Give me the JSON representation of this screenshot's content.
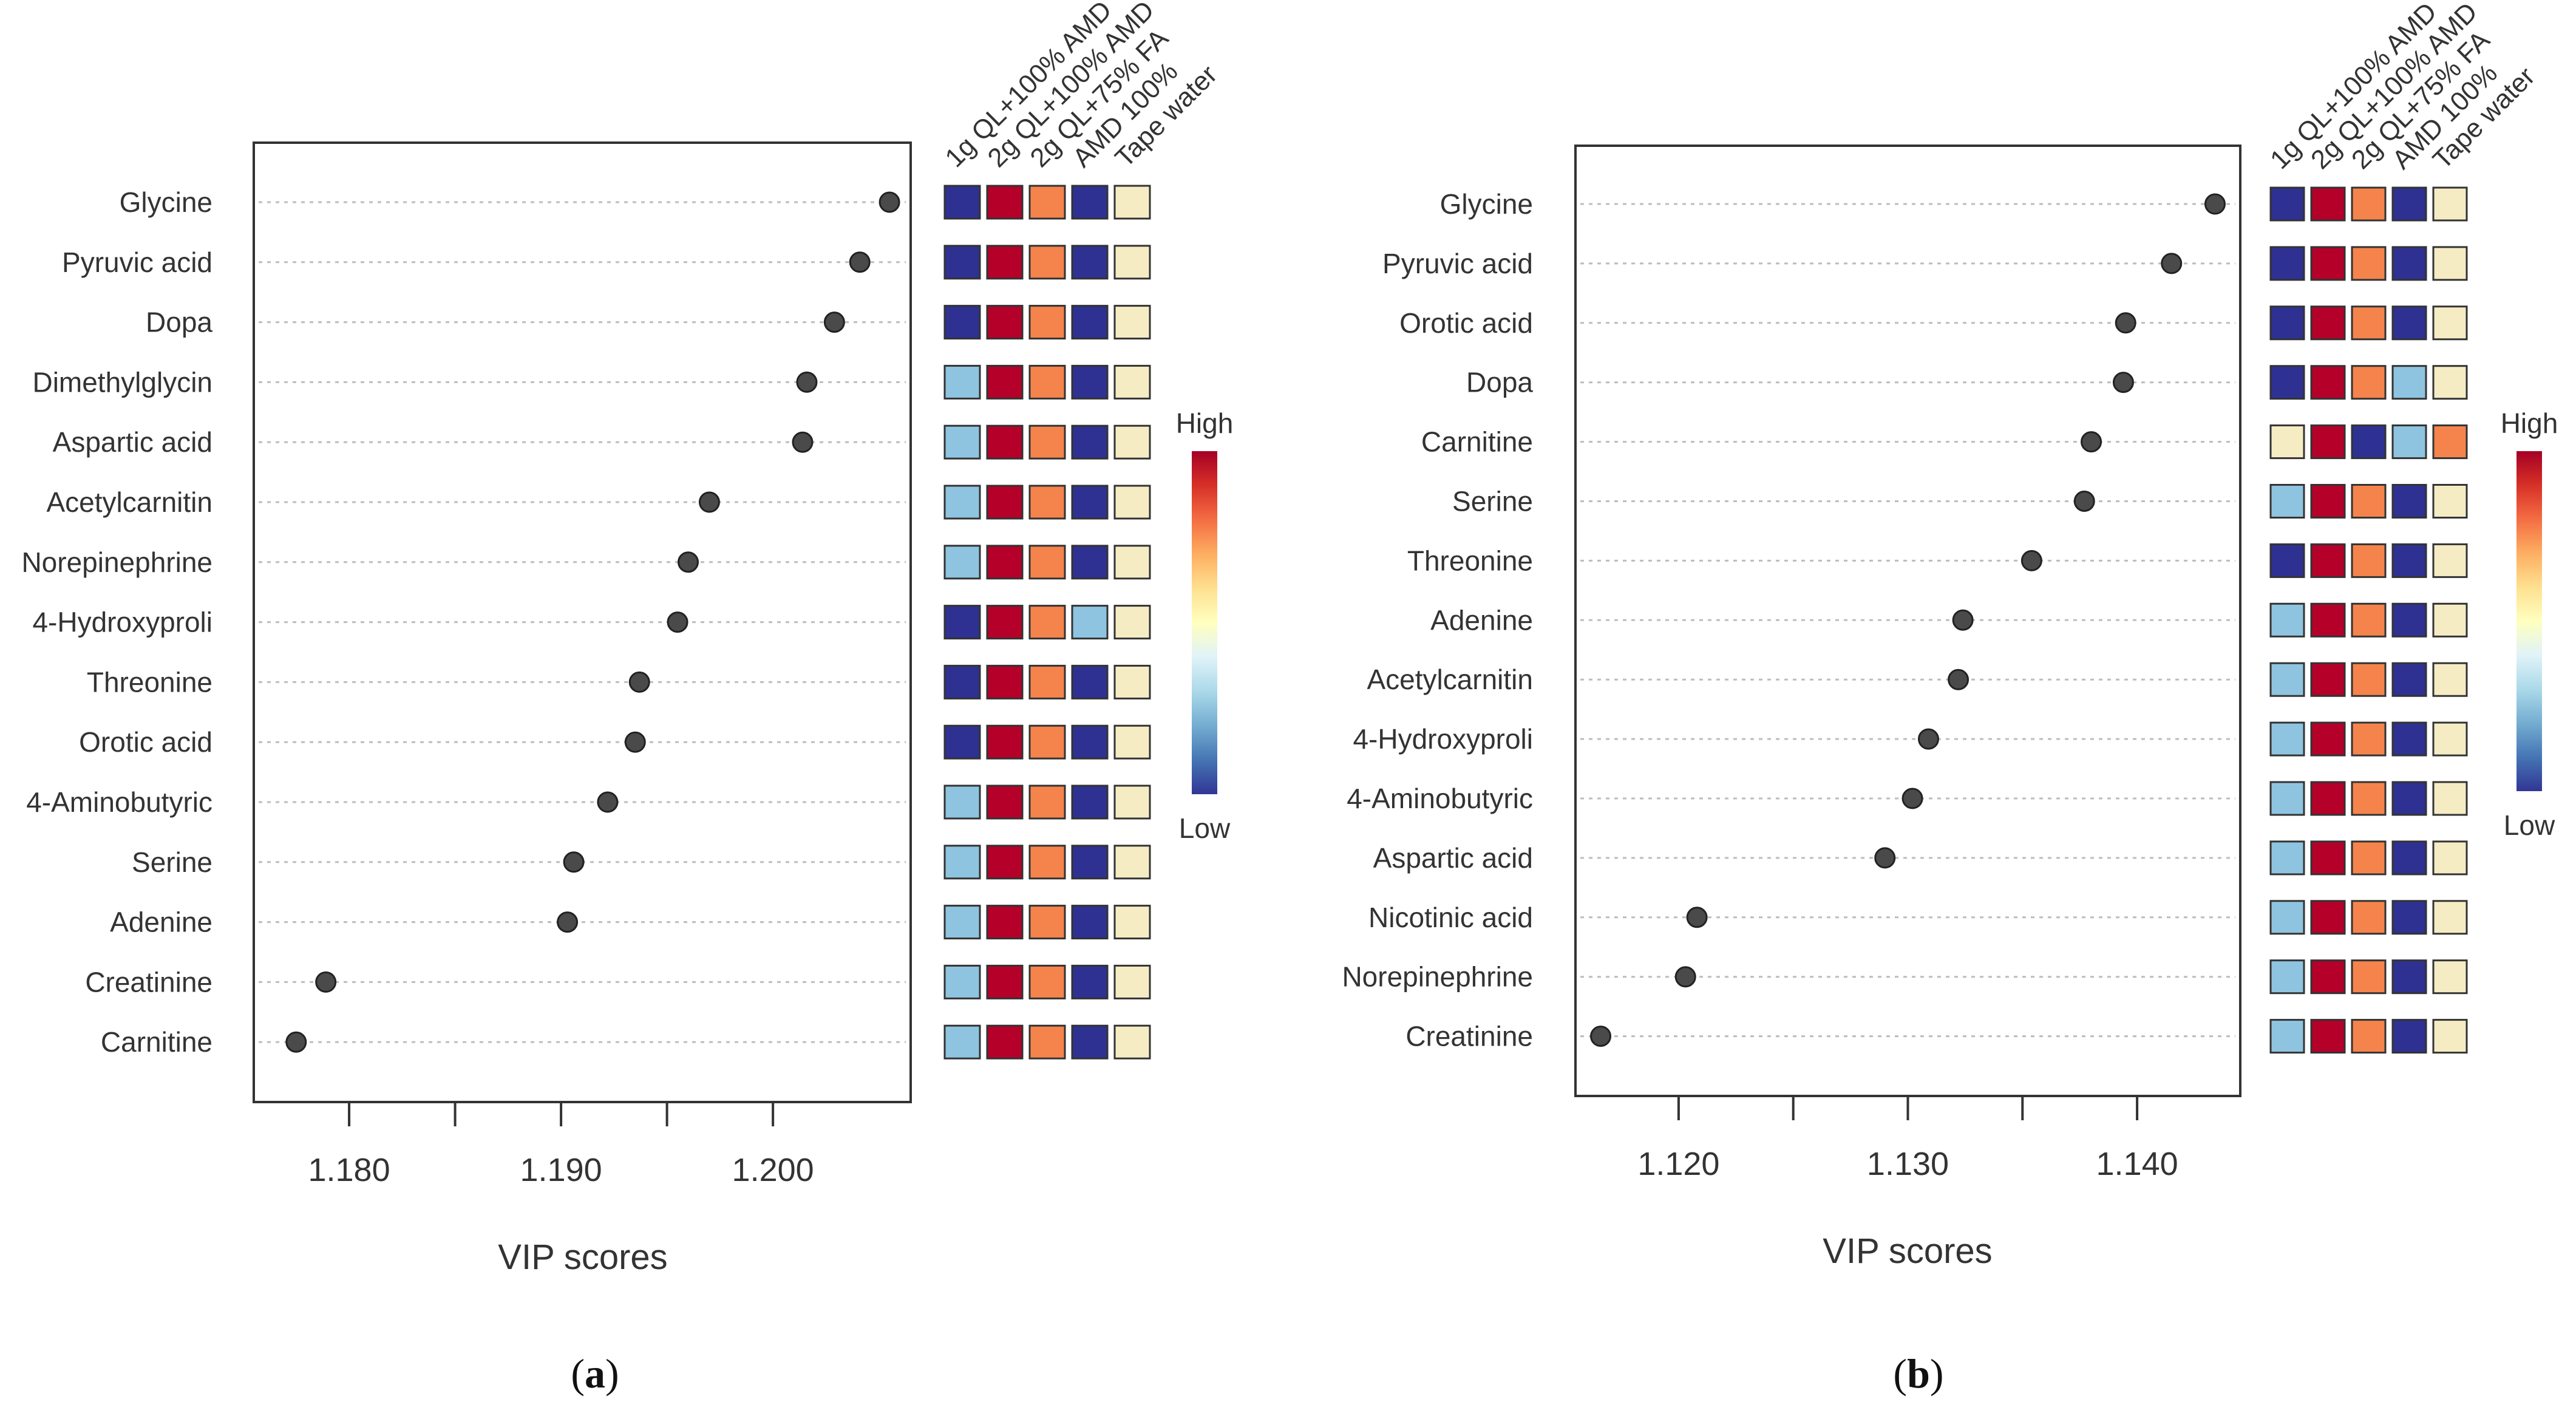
{
  "legend": {
    "high": "High",
    "low": "Low"
  },
  "colors": {
    "dark_blue": "#2e3192",
    "light_blue": "#8ec4e0",
    "red": "#b5002a",
    "orange": "#f4844c",
    "cream": "#f6ecc4",
    "dot": "#4a4a4a",
    "grid": "#bdbdbd",
    "colorbar": [
      "#313695",
      "#4575b4",
      "#74add1",
      "#abd9e9",
      "#e0f3f8",
      "#ffffbf",
      "#fee090",
      "#fdae61",
      "#f46d43",
      "#d73027",
      "#a50026"
    ]
  },
  "chart_data": [
    {
      "type": "scatter",
      "panel_label": "(a)",
      "panel_letter": "a",
      "xlabel": "VIP scores",
      "xlim": [
        1.1755,
        1.2065
      ],
      "xticks": [
        1.18,
        1.19,
        1.2
      ],
      "xtick_labels": [
        "1.180",
        "1.190",
        "1.200"
      ],
      "xtick_minor": [
        1.185,
        1.195
      ],
      "groups": [
        "1g QL+100% AMD",
        "2g QL+100% AMD",
        "2g QL+75% FA",
        "AMD 100%",
        "Tape water"
      ],
      "metabolites": [
        "Glycine",
        "Pyruvic acid",
        "Dopa",
        "Dimethylglycin",
        "Aspartic acid",
        "Acetylcarnitin",
        "Norepinephrine",
        "4-Hydroxyproli",
        "Threonine",
        "Orotic acid",
        "4-Aminobutyric",
        "Serine",
        "Adenine",
        "Creatinine",
        "Carnitine"
      ],
      "vip": [
        1.2055,
        1.2041,
        1.2029,
        1.2016,
        1.2014,
        1.197,
        1.196,
        1.1955,
        1.1937,
        1.1935,
        1.1922,
        1.1906,
        1.1903,
        1.1789,
        1.1775
      ],
      "heatmap": [
        [
          "dark_blue",
          "red",
          "orange",
          "dark_blue",
          "cream"
        ],
        [
          "dark_blue",
          "red",
          "orange",
          "dark_blue",
          "cream"
        ],
        [
          "dark_blue",
          "red",
          "orange",
          "dark_blue",
          "cream"
        ],
        [
          "light_blue",
          "red",
          "orange",
          "dark_blue",
          "cream"
        ],
        [
          "light_blue",
          "red",
          "orange",
          "dark_blue",
          "cream"
        ],
        [
          "light_blue",
          "red",
          "orange",
          "dark_blue",
          "cream"
        ],
        [
          "light_blue",
          "red",
          "orange",
          "dark_blue",
          "cream"
        ],
        [
          "dark_blue",
          "red",
          "orange",
          "light_blue",
          "cream"
        ],
        [
          "dark_blue",
          "red",
          "orange",
          "dark_blue",
          "cream"
        ],
        [
          "dark_blue",
          "red",
          "orange",
          "dark_blue",
          "cream"
        ],
        [
          "light_blue",
          "red",
          "orange",
          "dark_blue",
          "cream"
        ],
        [
          "light_blue",
          "red",
          "orange",
          "dark_blue",
          "cream"
        ],
        [
          "light_blue",
          "red",
          "orange",
          "dark_blue",
          "cream"
        ],
        [
          "light_blue",
          "red",
          "orange",
          "dark_blue",
          "cream"
        ],
        [
          "light_blue",
          "red",
          "orange",
          "dark_blue",
          "cream"
        ]
      ]
    },
    {
      "type": "scatter",
      "panel_label": "(b)",
      "panel_letter": "b",
      "xlabel": "VIP scores",
      "xlim": [
        1.1155,
        1.1445
      ],
      "xticks": [
        1.12,
        1.13,
        1.14
      ],
      "xtick_labels": [
        "1.120",
        "1.130",
        "1.140"
      ],
      "xtick_minor": [
        1.125,
        1.135
      ],
      "groups": [
        "1g QL+100% AMD",
        "2g QL+100% AMD",
        "2g QL+75% FA",
        "AMD 100%",
        "Tape water"
      ],
      "metabolites": [
        "Glycine",
        "Pyruvic acid",
        "Orotic acid",
        "Dopa",
        "Carnitine",
        "Serine",
        "Threonine",
        "Adenine",
        "Acetylcarnitin",
        "4-Hydroxyproli",
        "4-Aminobutyric",
        "Aspartic acid",
        "Nicotinic acid",
        "Norepinephrine",
        "Creatinine"
      ],
      "vip": [
        1.1434,
        1.1415,
        1.1395,
        1.1394,
        1.138,
        1.1377,
        1.1354,
        1.1324,
        1.1322,
        1.1309,
        1.1302,
        1.129,
        1.1208,
        1.1203,
        1.1166
      ],
      "heatmap": [
        [
          "dark_blue",
          "red",
          "orange",
          "dark_blue",
          "cream"
        ],
        [
          "dark_blue",
          "red",
          "orange",
          "dark_blue",
          "cream"
        ],
        [
          "dark_blue",
          "red",
          "orange",
          "dark_blue",
          "cream"
        ],
        [
          "dark_blue",
          "red",
          "orange",
          "light_blue",
          "cream"
        ],
        [
          "cream",
          "red",
          "dark_blue",
          "light_blue",
          "orange"
        ],
        [
          "light_blue",
          "red",
          "orange",
          "dark_blue",
          "cream"
        ],
        [
          "dark_blue",
          "red",
          "orange",
          "dark_blue",
          "cream"
        ],
        [
          "light_blue",
          "red",
          "orange",
          "dark_blue",
          "cream"
        ],
        [
          "light_blue",
          "red",
          "orange",
          "dark_blue",
          "cream"
        ],
        [
          "light_blue",
          "red",
          "orange",
          "dark_blue",
          "cream"
        ],
        [
          "light_blue",
          "red",
          "orange",
          "dark_blue",
          "cream"
        ],
        [
          "light_blue",
          "red",
          "orange",
          "dark_blue",
          "cream"
        ],
        [
          "light_blue",
          "red",
          "orange",
          "dark_blue",
          "cream"
        ],
        [
          "light_blue",
          "red",
          "orange",
          "dark_blue",
          "cream"
        ],
        [
          "light_blue",
          "red",
          "orange",
          "dark_blue",
          "cream"
        ]
      ]
    }
  ]
}
